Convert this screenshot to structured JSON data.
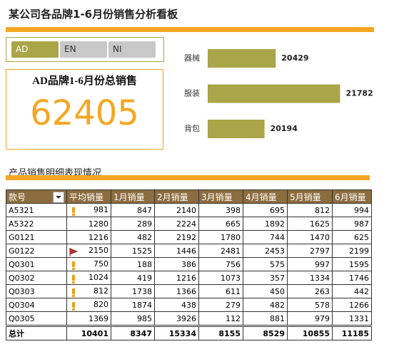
{
  "header": {
    "title": "某公司各品牌1-6月份销售分析看板"
  },
  "buttons": [
    "AD",
    "EN",
    "NI"
  ],
  "selected_button": 0,
  "kpi": {
    "title": "AD品牌1-6月份总销售",
    "value": 62405
  },
  "chart_data": {
    "type": "bar",
    "orientation": "horizontal",
    "categories": [
      "器械",
      "服装",
      "背包"
    ],
    "values": [
      20429,
      21782,
      20194
    ],
    "color": "#a9a548",
    "xlim": [
      19000,
      22000
    ]
  },
  "section_title": "产品销售明细表现情况",
  "table": {
    "columns": [
      "款号",
      "平均销量",
      "1月销量",
      "2月销量",
      "3月销量",
      "4月销量",
      "5月销量",
      "6月销量"
    ],
    "rows": [
      [
        "A5321",
        981,
        847,
        2140,
        398,
        695,
        812,
        994
      ],
      [
        "A5322",
        1280,
        289,
        2224,
        665,
        1892,
        1625,
        987
      ],
      [
        "G0121",
        1216,
        482,
        2192,
        1780,
        744,
        1470,
        625
      ],
      [
        "G0122",
        2150,
        1525,
        1446,
        2481,
        2453,
        2797,
        2199
      ],
      [
        "Q0301",
        750,
        188,
        386,
        756,
        575,
        997,
        1595
      ],
      [
        "Q0302",
        1024,
        419,
        1216,
        1073,
        357,
        1334,
        1746
      ],
      [
        "Q0303",
        812,
        1738,
        1366,
        611,
        450,
        263,
        442
      ],
      [
        "Q0304",
        820,
        1874,
        438,
        279,
        482,
        578,
        1266
      ],
      [
        "Q0305",
        1369,
        985,
        3926,
        112,
        881,
        979,
        1331
      ]
    ],
    "row_icons": [
      "warning",
      null,
      null,
      "flag",
      "warning",
      "warning",
      "warning",
      "warning",
      null
    ],
    "total": [
      "总计",
      10401,
      8347,
      15334,
      8155,
      8529,
      10855,
      11185
    ]
  }
}
